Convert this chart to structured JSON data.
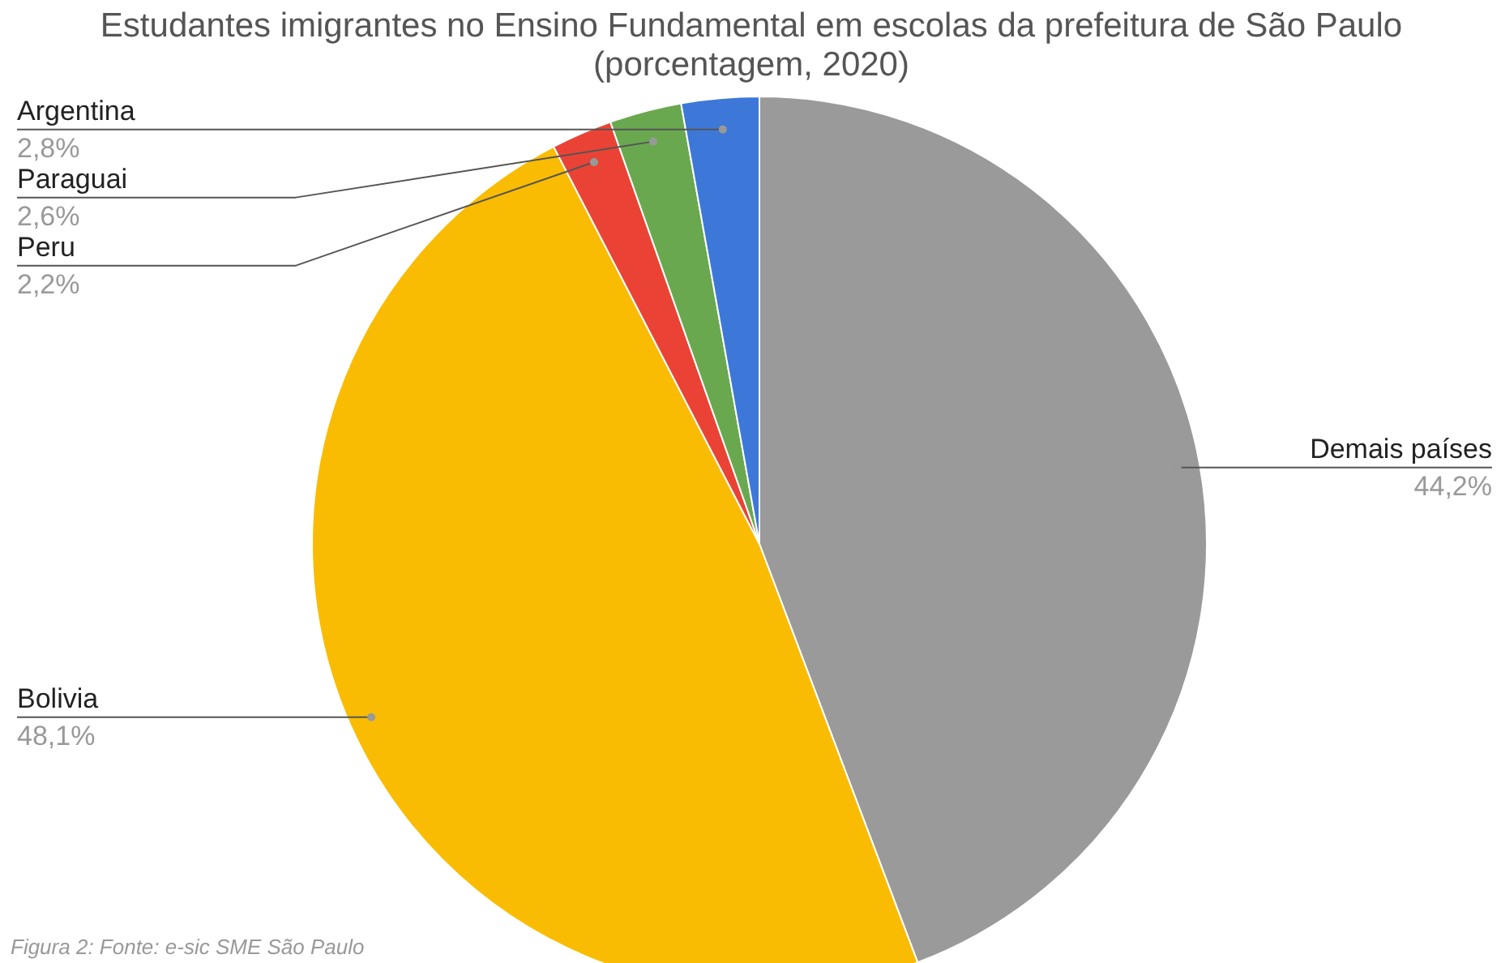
{
  "chart_data": {
    "type": "pie",
    "title": "Estudantes imigrantes no Ensino Fundamental em escolas da prefeitura de São Paulo\n(porcentagem, 2020)",
    "categories": [
      "Demais países",
      "Bolivia",
      "Peru",
      "Paraguai",
      "Argentina"
    ],
    "values": [
      44.2,
      48.1,
      2.2,
      2.6,
      2.8
    ],
    "colors": [
      "#9a9a9a",
      "#f9bc02",
      "#ea4335",
      "#6aa84f",
      "#3d78d8"
    ],
    "value_labels": [
      "44,2%",
      "48,1%",
      "2,2%",
      "2,6%",
      "2,8%"
    ],
    "annotations": [
      "Figura 2: Fonte: e-sic SME São Paulo"
    ]
  }
}
